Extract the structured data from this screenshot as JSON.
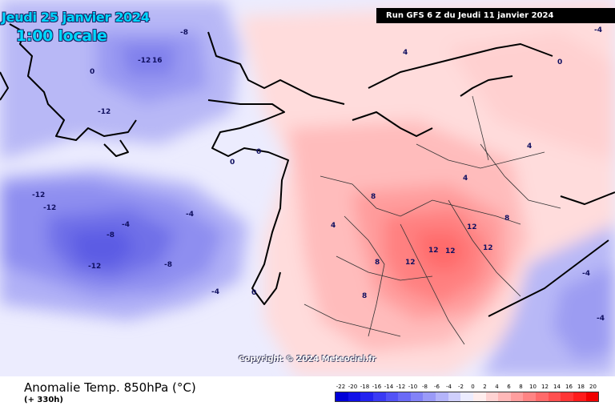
{
  "header": {
    "date": "Jeudi 25 janvier 2024",
    "time": "1:00 locale",
    "run": "Run GFS 6 Z du Jeudi 11 janvier 2024"
  },
  "copyright": "Copyright © 2024 Meteociel.fr",
  "footer": {
    "variable": "Anomalie Temp. 850hPa (°C)",
    "lead": "(+ 330h)"
  },
  "legend": {
    "ticks": [
      "-22",
      "-20",
      "-18",
      "-16",
      "-14",
      "-12",
      "-10",
      "-8",
      "-6",
      "-4",
      "-2",
      "0",
      "2",
      "4",
      "6",
      "8",
      "10",
      "12",
      "14",
      "16",
      "18",
      "20"
    ],
    "colors": [
      "#0000d8",
      "#1010e8",
      "#2222f0",
      "#3a3af4",
      "#5252f6",
      "#6a6af6",
      "#8282f7",
      "#9a9af8",
      "#b4b4fa",
      "#cfcffc",
      "#ececfe",
      "#ffeded",
      "#ffd2d2",
      "#ffb8b8",
      "#ff9e9e",
      "#ff8484",
      "#ff6a6a",
      "#ff5050",
      "#ff3636",
      "#ff1c1c",
      "#f00000"
    ]
  },
  "map_labels": [
    "-12",
    "16",
    "-12",
    "-12",
    "-12",
    "-8",
    "-8",
    "-8",
    "-4",
    "-4",
    "-4",
    "-12",
    "0",
    "0",
    "0",
    "0",
    "0",
    "4",
    "4",
    "8",
    "8",
    "8",
    "8",
    "12",
    "12",
    "12",
    "12",
    "12",
    "-4",
    "-4",
    "4",
    "4",
    "-4"
  ]
}
